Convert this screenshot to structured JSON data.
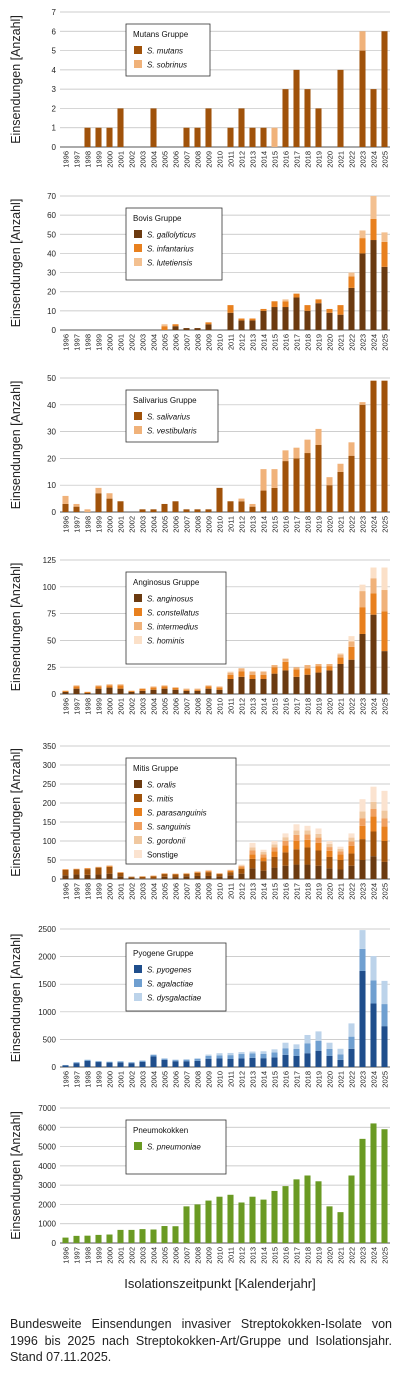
{
  "x_axis_label": "Isolationszeitpunkt [Kalenderjahr]",
  "caption": "Bundesweite Einsendungen invasiver Streptokokken-Isolate von 1996 bis 2025 nach Streptokokken-Art/Gruppe und Isolationsjahr. Stand 07.11.2025.",
  "chart_data": [
    {
      "type": "bar",
      "stacked": true,
      "legend_title": "Mutans Gruppe",
      "ylabel": "Einsendungen [Anzahl]",
      "ylim": [
        0,
        7
      ],
      "yticks": [
        0,
        1,
        2,
        3,
        4,
        5,
        6,
        7
      ],
      "categories": [
        "1996",
        "1997",
        "1998",
        "1999",
        "2000",
        "2001",
        "2002",
        "2003",
        "2004",
        "2005",
        "2006",
        "2007",
        "2008",
        "2009",
        "2010",
        "2011",
        "2012",
        "2013",
        "2014",
        "2015",
        "2016",
        "2017",
        "2018",
        "2019",
        "2020",
        "2021",
        "2022",
        "2023",
        "2024",
        "2025"
      ],
      "series": [
        {
          "name": "S. mutans",
          "color": "#a0520a",
          "values": [
            0,
            0,
            1,
            1,
            1,
            2,
            0,
            0,
            2,
            0,
            0,
            1,
            1,
            2,
            0,
            1,
            2,
            1,
            1,
            0,
            3,
            4,
            3,
            2,
            0,
            4,
            0,
            5,
            3,
            6
          ]
        },
        {
          "name": "S. sobrinus",
          "color": "#f0b27a",
          "values": [
            0,
            0,
            0,
            0,
            0,
            0,
            0,
            0,
            0,
            0,
            0,
            0,
            0,
            0,
            0,
            0,
            0,
            0,
            0,
            1,
            0,
            0,
            0,
            0,
            0,
            0,
            0,
            1,
            0,
            0
          ]
        }
      ]
    },
    {
      "type": "bar",
      "stacked": true,
      "legend_title": "Bovis Gruppe",
      "ylabel": "Einsendungen [Anzahl]",
      "ylim": [
        0,
        70
      ],
      "yticks": [
        0,
        10,
        20,
        30,
        40,
        50,
        60,
        70
      ],
      "categories": [
        "1996",
        "1997",
        "1998",
        "1999",
        "2000",
        "2001",
        "2002",
        "2003",
        "2004",
        "2005",
        "2006",
        "2007",
        "2008",
        "2009",
        "2010",
        "2011",
        "2012",
        "2013",
        "2014",
        "2015",
        "2016",
        "2017",
        "2018",
        "2019",
        "2020",
        "2021",
        "2022",
        "2023",
        "2024",
        "2025"
      ],
      "series": [
        {
          "name": "S. gallolyticus",
          "color": "#6b3a10",
          "values": [
            0,
            0,
            0,
            0,
            0,
            0,
            0,
            0,
            0,
            0,
            2,
            1,
            1,
            3,
            0,
            9,
            5,
            5,
            10,
            12,
            12,
            17,
            10,
            14,
            9,
            8,
            22,
            40,
            47,
            33
          ]
        },
        {
          "name": "S. infantarius",
          "color": "#e8801e",
          "values": [
            0,
            0,
            0,
            0,
            0,
            0,
            0,
            0,
            0,
            2,
            1,
            0,
            0,
            1,
            0,
            4,
            1,
            1,
            1,
            3,
            3,
            2,
            3,
            2,
            2,
            5,
            6,
            8,
            11,
            13
          ]
        },
        {
          "name": "S. lutetiensis",
          "color": "#f3c090",
          "values": [
            0,
            0,
            0,
            0,
            0,
            0,
            0,
            0,
            0,
            1,
            0,
            0,
            0,
            0,
            0,
            0,
            0,
            0,
            0,
            0,
            1,
            0,
            0,
            0,
            0,
            0,
            2,
            4,
            12,
            5
          ]
        }
      ]
    },
    {
      "type": "bar",
      "stacked": true,
      "legend_title": "Salivarius Gruppe",
      "ylabel": "Einsendungen [Anzahl]",
      "ylim": [
        0,
        50
      ],
      "yticks": [
        0,
        10,
        20,
        30,
        40,
        50
      ],
      "categories": [
        "1996",
        "1997",
        "1998",
        "1999",
        "2000",
        "2001",
        "2002",
        "2003",
        "2004",
        "2005",
        "2006",
        "2007",
        "2008",
        "2009",
        "2010",
        "2011",
        "2012",
        "2013",
        "2014",
        "2015",
        "2016",
        "2017",
        "2018",
        "2019",
        "2020",
        "2021",
        "2022",
        "2023",
        "2024",
        "2025"
      ],
      "series": [
        {
          "name": "S. salivarius",
          "color": "#a0520a",
          "values": [
            3,
            2,
            0,
            7,
            5,
            4,
            0,
            1,
            1,
            3,
            4,
            1,
            1,
            1,
            9,
            4,
            4,
            2,
            8,
            9,
            19,
            20,
            22,
            25,
            10,
            15,
            21,
            40,
            49,
            49
          ]
        },
        {
          "name": "S. vestibularis",
          "color": "#f0b27a",
          "values": [
            3,
            1,
            1,
            2,
            2,
            0,
            0,
            0,
            0,
            0,
            0,
            0,
            0,
            0,
            0,
            0,
            1,
            1,
            8,
            7,
            4,
            4,
            5,
            6,
            3,
            3,
            5,
            1,
            0,
            0
          ]
        }
      ]
    },
    {
      "type": "bar",
      "stacked": true,
      "legend_title": "Anginosus Gruppe",
      "ylabel": "Einsendungen [Anzahl]",
      "ylim": [
        0,
        125
      ],
      "yticks": [
        0,
        25,
        50,
        75,
        100,
        125
      ],
      "categories": [
        "1996",
        "1997",
        "1998",
        "1999",
        "2000",
        "2001",
        "2002",
        "2003",
        "2004",
        "2005",
        "2006",
        "2007",
        "2008",
        "2009",
        "2010",
        "2011",
        "2012",
        "2013",
        "2014",
        "2015",
        "2016",
        "2017",
        "2018",
        "2019",
        "2020",
        "2021",
        "2022",
        "2023",
        "2024",
        "2025"
      ],
      "series": [
        {
          "name": "S. anginosus",
          "color": "#6b3a10",
          "values": [
            2,
            5,
            1,
            5,
            6,
            5,
            2,
            3,
            4,
            5,
            4,
            3,
            3,
            5,
            4,
            14,
            16,
            14,
            14,
            19,
            22,
            16,
            18,
            20,
            22,
            28,
            32,
            56,
            74,
            40
          ]
        },
        {
          "name": "S. constellatus",
          "color": "#e8801e",
          "values": [
            1,
            2,
            1,
            2,
            2,
            3,
            1,
            2,
            2,
            2,
            2,
            1,
            1,
            2,
            2,
            4,
            5,
            4,
            4,
            6,
            8,
            7,
            6,
            6,
            4,
            6,
            12,
            25,
            20,
            37
          ]
        },
        {
          "name": "S. intermedius",
          "color": "#f0b27a",
          "values": [
            0,
            1,
            0,
            1,
            1,
            1,
            0,
            0,
            1,
            1,
            0,
            1,
            1,
            1,
            1,
            2,
            3,
            3,
            3,
            2,
            3,
            2,
            3,
            2,
            2,
            3,
            5,
            15,
            14,
            20
          ]
        },
        {
          "name": "S. hominis",
          "color": "#fbe0c8",
          "values": [
            0,
            0,
            0,
            0,
            0,
            0,
            0,
            0,
            0,
            0,
            0,
            0,
            0,
            0,
            0,
            1,
            0,
            0,
            0,
            0,
            0,
            0,
            0,
            0,
            0,
            1,
            5,
            6,
            10,
            21
          ]
        }
      ]
    },
    {
      "type": "bar",
      "stacked": true,
      "legend_title": "Mitis Gruppe",
      "ylabel": "Einsendungen [Anzahl]",
      "ylim": [
        0,
        350
      ],
      "yticks": [
        0,
        50,
        100,
        150,
        200,
        250,
        300,
        350
      ],
      "categories": [
        "1996",
        "1997",
        "1998",
        "1999",
        "2000",
        "2001",
        "2002",
        "2003",
        "2004",
        "2005",
        "2006",
        "2007",
        "2008",
        "2009",
        "2010",
        "2011",
        "2012",
        "2013",
        "2014",
        "2015",
        "2016",
        "2017",
        "2018",
        "2019",
        "2020",
        "2021",
        "2022",
        "2023",
        "2024",
        "2025"
      ],
      "series": [
        {
          "name": "S. oralis",
          "color": "#6b3a10",
          "values": [
            10,
            12,
            11,
            12,
            14,
            7,
            3,
            2,
            2,
            6,
            5,
            7,
            8,
            8,
            7,
            10,
            14,
            28,
            22,
            30,
            35,
            38,
            38,
            35,
            28,
            25,
            35,
            50,
            60,
            45
          ]
        },
        {
          "name": "S. mitis",
          "color": "#a0520a",
          "values": [
            14,
            13,
            15,
            18,
            18,
            9,
            3,
            4,
            5,
            7,
            7,
            6,
            8,
            10,
            6,
            8,
            13,
            25,
            25,
            28,
            35,
            40,
            45,
            40,
            30,
            25,
            32,
            55,
            65,
            55
          ]
        },
        {
          "name": "S. parasanguinis",
          "color": "#e8801e",
          "values": [
            1,
            1,
            2,
            1,
            2,
            1,
            0,
            1,
            1,
            1,
            1,
            1,
            2,
            2,
            1,
            3,
            4,
            12,
            10,
            15,
            18,
            22,
            20,
            20,
            16,
            15,
            20,
            35,
            40,
            38
          ]
        },
        {
          "name": "S. sanguinis",
          "color": "#f0a060",
          "values": [
            1,
            1,
            1,
            1,
            1,
            1,
            0,
            0,
            1,
            1,
            1,
            1,
            1,
            2,
            1,
            2,
            3,
            10,
            8,
            10,
            12,
            16,
            14,
            14,
            10,
            8,
            12,
            20,
            20,
            22
          ]
        },
        {
          "name": "S. gordonii",
          "color": "#f0c8a0",
          "values": [
            0,
            0,
            0,
            0,
            1,
            0,
            0,
            0,
            0,
            0,
            0,
            1,
            1,
            1,
            0,
            1,
            2,
            8,
            6,
            8,
            10,
            12,
            11,
            10,
            8,
            6,
            10,
            18,
            18,
            20
          ]
        },
        {
          "name": "Sonstige",
          "color": "#fbe3d0",
          "values": [
            0,
            0,
            0,
            0,
            1,
            0,
            0,
            0,
            0,
            0,
            0,
            0,
            1,
            1,
            0,
            1,
            2,
            12,
            6,
            9,
            10,
            16,
            12,
            14,
            8,
            6,
            11,
            32,
            40,
            52
          ]
        }
      ]
    },
    {
      "type": "bar",
      "stacked": true,
      "legend_title": "Pyogene Gruppe",
      "ylabel": "Einsendungen [Anzahl]",
      "ylim": [
        0,
        2500
      ],
      "yticks": [
        0,
        500,
        1000,
        1500,
        2000,
        2500
      ],
      "categories": [
        "1996",
        "1997",
        "1998",
        "1999",
        "2000",
        "2001",
        "2002",
        "2003",
        "2004",
        "2005",
        "2006",
        "2007",
        "2008",
        "2009",
        "2010",
        "2011",
        "2012",
        "2013",
        "2014",
        "2015",
        "2016",
        "2017",
        "2018",
        "2019",
        "2020",
        "2021",
        "2022",
        "2023",
        "2024",
        "2025"
      ],
      "series": [
        {
          "name": "S. pyogenes",
          "color": "#1f4e8c",
          "values": [
            30,
            70,
            110,
            90,
            80,
            85,
            70,
            95,
            190,
            130,
            105,
            105,
            110,
            150,
            155,
            145,
            155,
            165,
            160,
            175,
            220,
            200,
            250,
            295,
            200,
            130,
            330,
            1740,
            1150,
            740
          ]
        },
        {
          "name": "S. agalactiae",
          "color": "#6f9fd0",
          "values": [
            5,
            15,
            20,
            15,
            15,
            15,
            15,
            20,
            30,
            20,
            20,
            25,
            35,
            50,
            55,
            70,
            80,
            80,
            80,
            90,
            120,
            130,
            180,
            180,
            130,
            100,
            220,
            400,
            420,
            400
          ]
        },
        {
          "name": "S. dysgalactiae",
          "color": "#bcd3ea",
          "values": [
            2,
            5,
            5,
            5,
            5,
            5,
            5,
            5,
            10,
            10,
            10,
            15,
            15,
            25,
            40,
            40,
            35,
            35,
            45,
            55,
            100,
            80,
            150,
            170,
            110,
            100,
            240,
            340,
            440,
            420
          ]
        }
      ]
    },
    {
      "type": "bar",
      "stacked": false,
      "legend_title": "Pneumokokken",
      "ylabel": "Einsendungen [Anzahl]",
      "ylim": [
        0,
        7000
      ],
      "yticks": [
        0,
        1000,
        2000,
        3000,
        4000,
        5000,
        6000,
        7000
      ],
      "categories": [
        "1996",
        "1997",
        "1998",
        "1999",
        "2000",
        "2001",
        "2002",
        "2003",
        "2004",
        "2005",
        "2006",
        "2007",
        "2008",
        "2009",
        "2010",
        "2011",
        "2012",
        "2013",
        "2014",
        "2015",
        "2016",
        "2017",
        "2018",
        "2019",
        "2020",
        "2021",
        "2022",
        "2023",
        "2024",
        "2025"
      ],
      "series": [
        {
          "name": "S. pneumoniae",
          "color": "#6a9a23",
          "values": [
            280,
            370,
            380,
            420,
            440,
            680,
            680,
            720,
            700,
            880,
            870,
            1900,
            2000,
            2200,
            2400,
            2500,
            2100,
            2400,
            2250,
            2700,
            2950,
            3300,
            3500,
            3200,
            1900,
            1600,
            3500,
            5400,
            6200,
            5900
          ]
        }
      ]
    }
  ]
}
